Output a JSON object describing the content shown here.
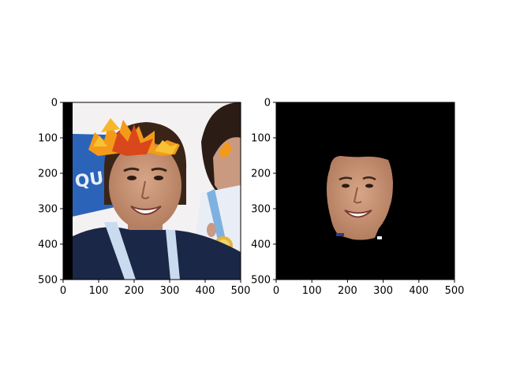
{
  "figure": {
    "panels": [
      {
        "id": "left",
        "content": "original photo with autumn-leaf crown filter",
        "xticks": [
          "0",
          "100",
          "200",
          "300",
          "400",
          "500"
        ],
        "yticks": [
          "0",
          "100",
          "200",
          "300",
          "400",
          "500"
        ]
      },
      {
        "id": "right",
        "content": "face segmentation mask on black background",
        "xticks": [
          "0",
          "100",
          "200",
          "300",
          "400",
          "500"
        ],
        "yticks": [
          "0",
          "100",
          "200",
          "300",
          "400",
          "500"
        ]
      }
    ]
  },
  "colors": {
    "background": "#ffffff",
    "mask_background": "#000000",
    "skin": "#c99676",
    "hair": "#3a2418",
    "leaf_orange": "#f39a1b",
    "leaf_red": "#d9481a",
    "leaf_yellow": "#f7c233",
    "banner_blue": "#2a63b8",
    "jersey_navy": "#1b2747"
  }
}
